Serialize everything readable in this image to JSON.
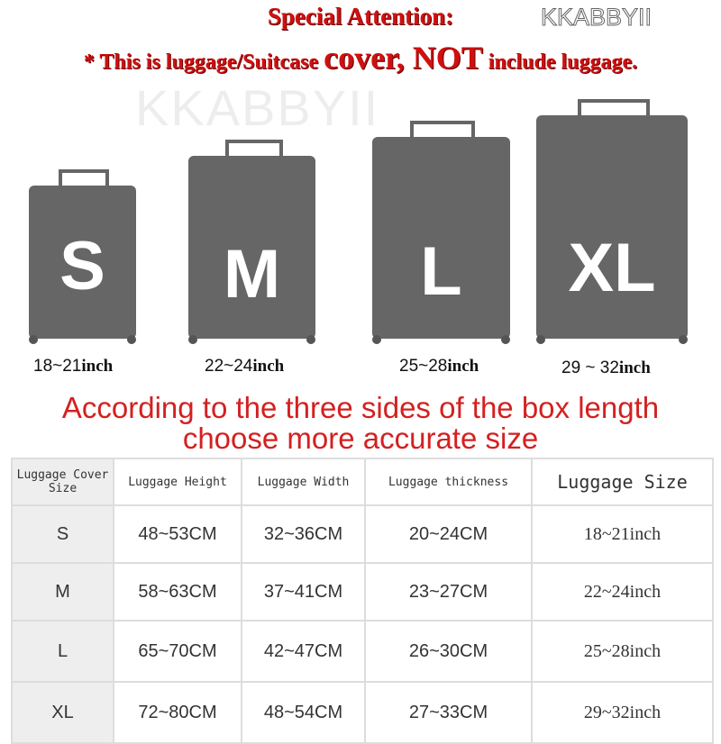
{
  "header": {
    "line1": "Special Attention:",
    "line2_pre": "* This is luggage/Suitcase ",
    "line2_big": "cover, NOT",
    "line2_post": " include luggage."
  },
  "sizes": [
    {
      "letter": "S",
      "range": "18~21",
      "unit": "inch"
    },
    {
      "letter": "M",
      "range": "22~24",
      "unit": "inch"
    },
    {
      "letter": "L",
      "range": "25~28",
      "unit": "inch"
    },
    {
      "letter": "XL",
      "range": "29 ~ 32",
      "unit": "inch"
    }
  ],
  "watermark": "KKABBYII",
  "note": {
    "line1": "According to the three sides of the box length",
    "line2": "choose more accurate size"
  },
  "table": {
    "headers": [
      "Luggage Cover Size",
      "Luggage Height",
      "Luggage Width",
      "Luggage thickness",
      "Luggage Size"
    ],
    "rows": [
      [
        "S",
        "48~53CM",
        "32~36CM",
        "20~24CM",
        "18~21inch"
      ],
      [
        "M",
        "58~63CM",
        "37~41CM",
        "23~27CM",
        "22~24inch"
      ],
      [
        "L",
        "65~70CM",
        "42~47CM",
        "26~30CM",
        "25~28inch"
      ],
      [
        "XL",
        "72~80CM",
        "48~54CM",
        "27~33CM",
        "29~32inch"
      ]
    ]
  },
  "colors": {
    "red": "#d01010",
    "suitcase": "#666666"
  }
}
